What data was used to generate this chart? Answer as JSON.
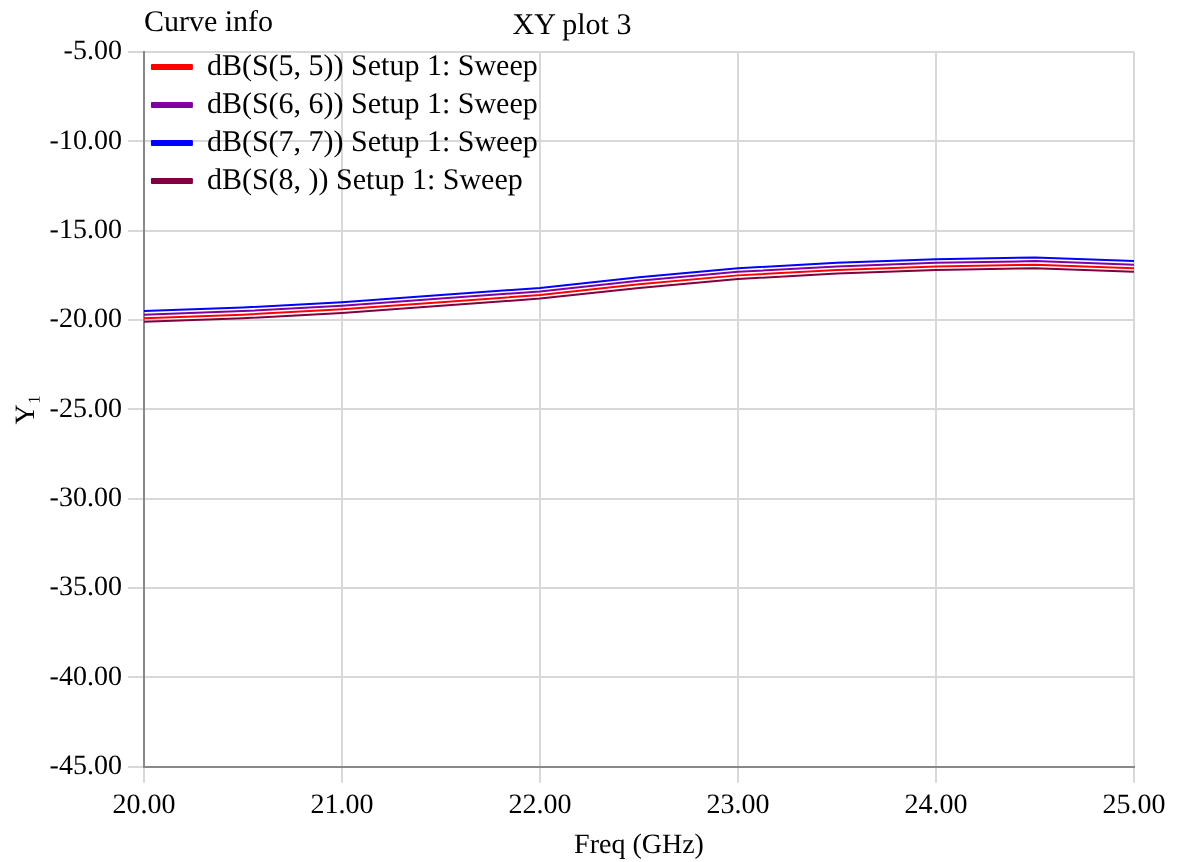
{
  "chart_data": {
    "type": "line",
    "title": "XY plot 3",
    "xlabel": "Freq (GHz)",
    "ylabel": "Y₁",
    "legend_title": "Curve info",
    "x": [
      20.0,
      20.5,
      21.0,
      21.5,
      22.0,
      22.5,
      23.0,
      23.5,
      24.0,
      24.5,
      25.0
    ],
    "series": [
      {
        "name": "dB(S(5, 5)) Setup 1: Sweep",
        "color": "#ff0000",
        "values": [
          -19.9,
          -19.7,
          -19.4,
          -19.0,
          -18.6,
          -18.0,
          -17.5,
          -17.2,
          -17.0,
          -16.9,
          -17.1
        ]
      },
      {
        "name": "dB(S(6, 6)) Setup 1: Sweep",
        "color": "#8000a0",
        "values": [
          -19.7,
          -19.5,
          -19.2,
          -18.8,
          -18.4,
          -17.8,
          -17.3,
          -17.0,
          -16.8,
          -16.7,
          -16.9
        ]
      },
      {
        "name": "dB(S(7, 7)) Setup 1: Sweep",
        "color": "#0000ff",
        "values": [
          -19.5,
          -19.3,
          -19.0,
          -18.6,
          -18.2,
          -17.6,
          -17.1,
          -16.8,
          -16.6,
          -16.5,
          -16.7
        ]
      },
      {
        "name": "dB(S(8, )) Setup 1: Sweep",
        "color": "#800040",
        "values": [
          -20.1,
          -19.9,
          -19.6,
          -19.2,
          -18.8,
          -18.2,
          -17.7,
          -17.4,
          -17.2,
          -17.1,
          -17.3
        ]
      }
    ],
    "xlim": [
      20,
      25
    ],
    "xticks": [
      {
        "value": 20,
        "label": "20.00"
      },
      {
        "value": 21,
        "label": "21.00"
      },
      {
        "value": 22,
        "label": "22.00"
      },
      {
        "value": 23,
        "label": "23.00"
      },
      {
        "value": 24,
        "label": "24.00"
      },
      {
        "value": 25,
        "label": "25.00"
      }
    ],
    "ylim": [
      -45,
      -5
    ],
    "yticks": [
      {
        "value": -45,
        "label": "-45.00"
      },
      {
        "value": -40,
        "label": "-40.00"
      },
      {
        "value": -35,
        "label": "-35.00"
      },
      {
        "value": -30,
        "label": "-30.00"
      },
      {
        "value": -25,
        "label": "-25.00"
      },
      {
        "value": -20,
        "label": "-20.00"
      },
      {
        "value": -15,
        "label": "-15.00"
      },
      {
        "value": -10,
        "label": "-10.00"
      },
      {
        "value": -5,
        "label": "-5.00"
      }
    ],
    "grid": true,
    "legend": "top left",
    "marker": "none",
    "line_style": "solid"
  }
}
